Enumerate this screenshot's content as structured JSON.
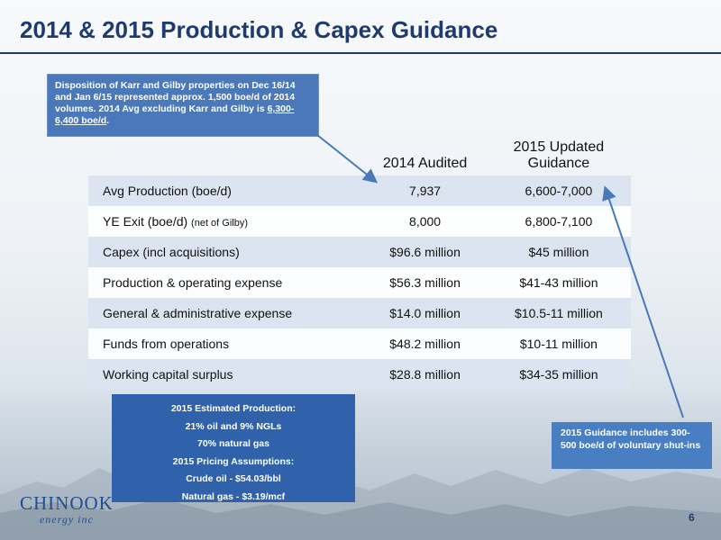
{
  "title": "2014 & 2015 Production & Capex Guidance",
  "callout_top": {
    "text": "Disposition of Karr and Gilby properties on Dec 16/14 and Jan 6/15 represented approx. 1,500 boe/d of 2014 volumes.   2014 Avg excluding Karr and Gilby is ",
    "underlined": "6,300-6,400 boe/d",
    "suffix": "."
  },
  "table": {
    "headers": [
      "2014 Audited",
      "2015 Updated Guidance"
    ],
    "rows": [
      {
        "label": "Avg Production (boe/d)",
        "note": "",
        "v2014": "7,937",
        "v2015": "6,600-7,000"
      },
      {
        "label": "YE Exit (boe/d)",
        "note": "(net of Gilby)",
        "v2014": "8,000",
        "v2015": "6,800-7,100"
      },
      {
        "label": "Capex (incl acquisitions)",
        "note": "",
        "v2014": "$96.6 million",
        "v2015": "$45 million"
      },
      {
        "label": "Production & operating expense",
        "note": "",
        "v2014": "$56.3 million",
        "v2015": "$41-43 million"
      },
      {
        "label": "General & administrative expense",
        "note": "",
        "v2014": "$14.0 million",
        "v2015": "$10.5-11 million"
      },
      {
        "label": "Funds from operations",
        "note": "",
        "v2014": "$48.2 million",
        "v2015": "$10-11 million"
      },
      {
        "label": "Working capital surplus",
        "note": "",
        "v2014": "$28.8 million",
        "v2015": "$34-35 million"
      }
    ]
  },
  "callout_bottom": {
    "lines": [
      "2015 Estimated Production:",
      "21% oil and 9% NGLs",
      "70% natural gas",
      "2015 Pricing Assumptions:",
      "Crude oil - $54.03/bbl",
      "Natural gas - $3.19/mcf"
    ]
  },
  "callout_right": "2015 Guidance includes 300-500 boe/d of voluntary shut-ins",
  "logo": {
    "name": "CHINOOK",
    "sub": "energy inc"
  },
  "page_number": "6",
  "colors": {
    "title": "#1f3b6e",
    "callout": "#4a78b8",
    "row_shade": "#dbe4f0",
    "arrow": "#4a78b8"
  }
}
